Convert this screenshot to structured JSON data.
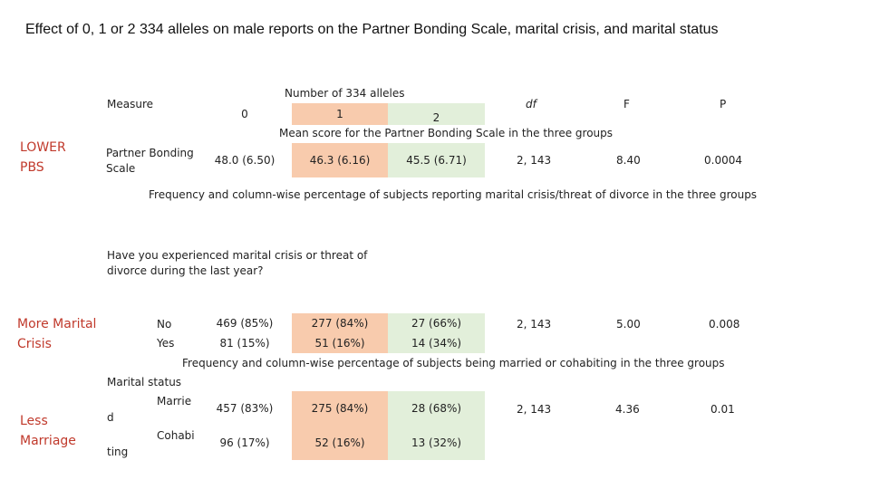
{
  "title": "Effect of 0, 1 or 2 334 alleles on male reports on the Partner Bonding Scale, marital crisis, and marital status",
  "header": {
    "measure": "Measure",
    "alleles_title": "Number of 334 alleles",
    "col0": "0",
    "col1": "1",
    "col2": "2",
    "df": "df",
    "f": "F",
    "p": "P"
  },
  "pbs": {
    "caption": "Mean score for the Partner Bonding Scale in the three groups",
    "side_label_1": "LOWER",
    "side_label_2": "PBS",
    "measure_1": "Partner Bonding",
    "measure_2": "Scale",
    "v0": "48.0 (6.50)",
    "v1": "46.3 (6.16)",
    "v2": "45.5 (6.71)",
    "df": "2, 143",
    "f": "8.40",
    "p": "0.0004"
  },
  "crisis": {
    "caption": "Frequency and column-wise percentage of subjects reporting marital crisis/threat of divorce in the three groups",
    "question_1": "Have you experienced marital crisis or threat of",
    "question_2": "divorce during the last year?",
    "side_label_1": "More Marital",
    "side_label_2": "Crisis",
    "no_label": "No",
    "yes_label": "Yes",
    "no_v0": "469 (85%)",
    "no_v1": "277 (84%)",
    "no_v2": "27 (66%)",
    "yes_v0": "81 (15%)",
    "yes_v1": "51 (16%)",
    "yes_v2": "14 (34%)",
    "df": "2, 143",
    "f": "5.00",
    "p": "0.008"
  },
  "marriage": {
    "caption": "Frequency and column-wise percentage of subjects being married or cohabiting in the three groups",
    "status_label": "Marital status",
    "side_label_1": "Less",
    "side_label_2": "Marriage",
    "married_a": "Marrie",
    "married_b": "d",
    "cohab_a": "Cohabi",
    "cohab_b": "ting",
    "m_v0": "457 (83%)",
    "m_v1": "275 (84%)",
    "m_v2": "28 (68%)",
    "c_v0": "96 (17%)",
    "c_v1": "52 (16%)",
    "c_v2": "13 (32%)",
    "df": "2, 143",
    "f": "4.36",
    "p": "0.01"
  }
}
